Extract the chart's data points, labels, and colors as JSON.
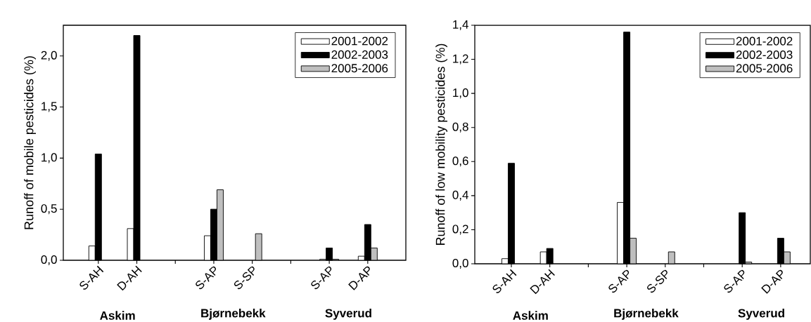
{
  "chart_data": [
    {
      "type": "bar",
      "ylabel": "Runoff of mobile pesticides (%)",
      "categories": [
        "S-AH",
        "D-AH",
        null,
        "S-AP",
        "S-SP",
        null,
        "S-AP",
        "D-AP"
      ],
      "series": [
        {
          "name": "2001-2002",
          "color": "#ffffff",
          "values": [
            0.14,
            0.31,
            null,
            0.24,
            null,
            null,
            0.01,
            0.04
          ]
        },
        {
          "name": "2002-2003",
          "color": "#000000",
          "values": [
            1.04,
            2.2,
            null,
            0.5,
            null,
            null,
            0.12,
            0.35
          ]
        },
        {
          "name": "2005-2006",
          "color": "#bfbfbf",
          "values": [
            null,
            null,
            null,
            0.69,
            0.26,
            null,
            0.01,
            0.12
          ]
        }
      ],
      "ylim": [
        0,
        2.3
      ],
      "yticks": [
        {
          "value": 0,
          "label": "0,0"
        },
        {
          "value": 0.5,
          "label": "0,5"
        },
        {
          "value": 1,
          "label": "1,0"
        },
        {
          "value": 1.5,
          "label": "1,5"
        },
        {
          "value": 2,
          "label": "2,0"
        }
      ],
      "annotations": [
        "Askim",
        "Bjørnebekk",
        "Syverud"
      ],
      "legend": "top right",
      "grid": false
    },
    {
      "type": "bar",
      "ylabel": "Runoff of low mobility pesticides (%)",
      "categories": [
        "S-AH",
        "D-AH",
        null,
        "S-AP",
        "S-SP",
        null,
        "S-AP",
        "D-AP"
      ],
      "series": [
        {
          "name": "2001-2002",
          "color": "#ffffff",
          "values": [
            0.03,
            0.07,
            null,
            0.36,
            null,
            null,
            null,
            null
          ]
        },
        {
          "name": "2002-2003",
          "color": "#000000",
          "values": [
            0.59,
            0.09,
            null,
            1.36,
            null,
            null,
            0.3,
            0.15
          ]
        },
        {
          "name": "2005-2006",
          "color": "#bfbfbf",
          "values": [
            null,
            null,
            null,
            0.15,
            0.07,
            null,
            0.01,
            0.07
          ]
        }
      ],
      "ylim": [
        0,
        1.4
      ],
      "yticks": [
        {
          "value": 0,
          "label": "0,0"
        },
        {
          "value": 0.2,
          "label": "0,2"
        },
        {
          "value": 0.4,
          "label": "0,4"
        },
        {
          "value": 0.6,
          "label": "0,6"
        },
        {
          "value": 0.8,
          "label": "0,8"
        },
        {
          "value": 1,
          "label": "1,0"
        },
        {
          "value": 1.2,
          "label": "1,2"
        },
        {
          "value": 1.4,
          "label": "1,4"
        }
      ],
      "annotations": [
        "Askim",
        "Bjørnebekk",
        "Syverud"
      ],
      "legend": "top right",
      "grid": false
    }
  ]
}
